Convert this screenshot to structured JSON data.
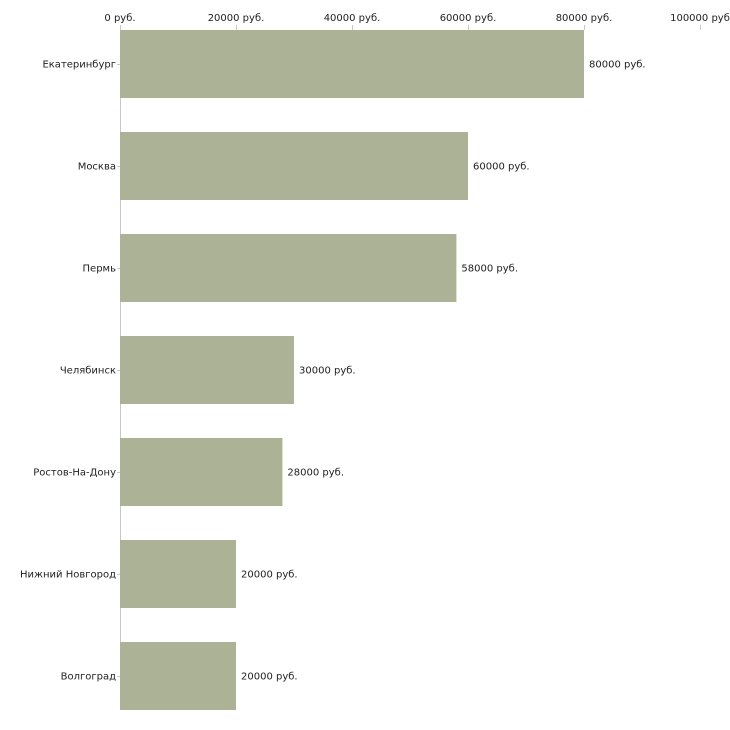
{
  "chart_data": {
    "type": "bar",
    "orientation": "horizontal",
    "title": "",
    "xlabel": "",
    "ylabel": "",
    "categories": [
      "Екатеринбург",
      "Москва",
      "Пермь",
      "Челябинск",
      "Ростов-На-Дону",
      "Нижний Новгород",
      "Волгоград"
    ],
    "values": [
      80000,
      60000,
      58000,
      30000,
      28000,
      20000,
      20000
    ],
    "value_labels": [
      "80000 руб.",
      "60000 руб.",
      "58000 руб.",
      "30000 руб.",
      "28000 руб.",
      "20000 руб.",
      "20000 руб."
    ],
    "xlim": [
      0,
      100000
    ],
    "x_ticks": [
      0,
      20000,
      40000,
      60000,
      80000,
      100000
    ],
    "x_tick_labels": [
      "0 руб.",
      "20000 руб.",
      "40000 руб.",
      "60000 руб.",
      "80000 руб.",
      "100000 руб"
    ],
    "axis_position": "top",
    "grid": false,
    "legend": "none",
    "colors": {
      "bar": "#acb296",
      "axis": "#c8c8c8",
      "text": "#222222"
    }
  }
}
